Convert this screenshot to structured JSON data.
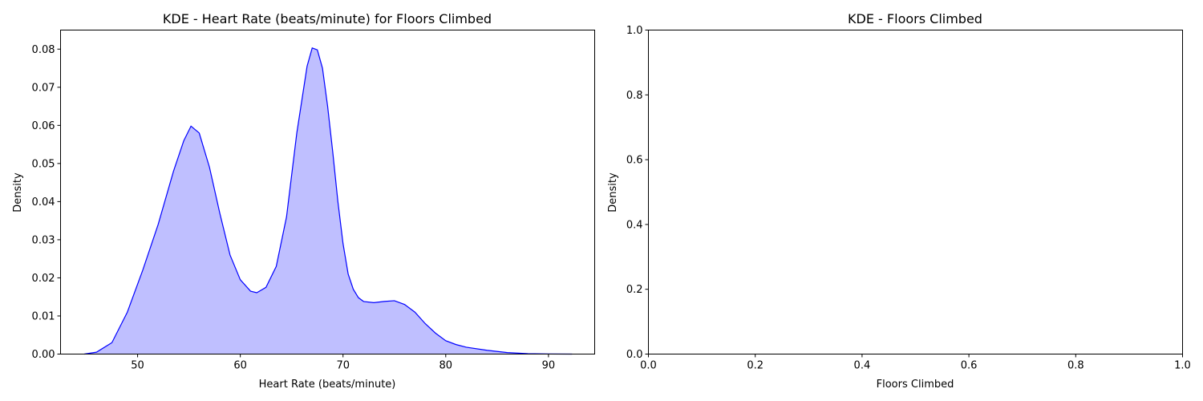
{
  "chart_data": [
    {
      "type": "area",
      "title": "KDE - Heart Rate (beats/minute) for Floors Climbed",
      "xlabel": "Heart Rate (beats/minute)",
      "ylabel": "Density",
      "xlim": [
        42.5,
        94.5
      ],
      "ylim": [
        0,
        0.085
      ],
      "xticks": [
        50,
        60,
        70,
        80,
        90
      ],
      "xtick_labels": [
        "50",
        "60",
        "70",
        "80",
        "90"
      ],
      "yticks": [
        0,
        0.01,
        0.02,
        0.03,
        0.04,
        0.05,
        0.06,
        0.07,
        0.08
      ],
      "ytick_labels": [
        "0.00",
        "0.01",
        "0.02",
        "0.03",
        "0.04",
        "0.05",
        "0.06",
        "0.07",
        "0.08"
      ],
      "grid": false,
      "line_color": "#0000ff",
      "fill_color": "#bfbfff",
      "series": [
        {
          "x": [
            44.8,
            46.0,
            47.5,
            49.0,
            50.5,
            52.0,
            53.5,
            54.5,
            55.2,
            56.0,
            57.0,
            58.0,
            59.0,
            60.0,
            61.0,
            61.6,
            62.5,
            63.5,
            64.5,
            65.5,
            66.5,
            67.0,
            67.5,
            68.0,
            68.5,
            69.0,
            69.5,
            70.0,
            70.5,
            71.0,
            71.5,
            72.0,
            73.0,
            74.0,
            75.0,
            76.0,
            77.0,
            78.0,
            79.0,
            80.0,
            81.0,
            82.0,
            84.0,
            86.0,
            88.0,
            90.0,
            92.3
          ],
          "y": [
            0.0,
            0.0005,
            0.003,
            0.011,
            0.022,
            0.034,
            0.048,
            0.056,
            0.0598,
            0.058,
            0.049,
            0.037,
            0.026,
            0.0195,
            0.0165,
            0.0161,
            0.0175,
            0.023,
            0.036,
            0.058,
            0.0755,
            0.0803,
            0.0798,
            0.075,
            0.065,
            0.053,
            0.04,
            0.029,
            0.021,
            0.017,
            0.0148,
            0.0138,
            0.0135,
            0.0138,
            0.014,
            0.013,
            0.011,
            0.008,
            0.0055,
            0.0035,
            0.0025,
            0.0018,
            0.001,
            0.0004,
            0.0001,
            3e-05,
            0.0
          ]
        }
      ]
    },
    {
      "type": "line",
      "title": "KDE - Floors Climbed",
      "xlabel": "Floors Climbed",
      "ylabel": "Density",
      "xlim": [
        0,
        1
      ],
      "ylim": [
        0,
        1
      ],
      "xticks": [
        0,
        0.2,
        0.4,
        0.6,
        0.8,
        1.0
      ],
      "xtick_labels": [
        "0.0",
        "0.2",
        "0.4",
        "0.6",
        "0.8",
        "1.0"
      ],
      "yticks": [
        0,
        0.2,
        0.4,
        0.6,
        0.8,
        1.0
      ],
      "ytick_labels": [
        "0.0",
        "0.2",
        "0.4",
        "0.6",
        "0.8",
        "1.0"
      ],
      "grid": false,
      "series": []
    }
  ]
}
